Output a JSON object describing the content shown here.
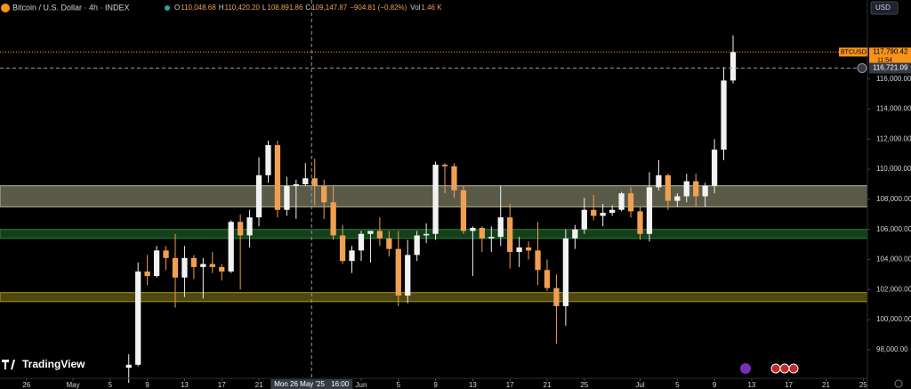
{
  "chart_data": {
    "type": "candlestick",
    "header": {
      "symbol": "Bitcoin / U.S. Dollar · 4h · INDEX",
      "ohlc": [
        {
          "key": "O",
          "text": "110,048.68"
        },
        {
          "key": "H",
          "text": "110,420.20"
        },
        {
          "key": "L",
          "text": "108,891.86"
        },
        {
          "key": "C",
          "text": "109,147.87"
        }
      ],
      "change": "−904.81 (−0.82%)",
      "volume_key": "Vol",
      "volume": "1.46 K"
    },
    "currency": "USD",
    "logo": "TradingView",
    "ticker_tag": "BTCUSD",
    "up_color": "#f2f2f2",
    "down_color": "#f0a050",
    "candles": {
      "x": [
        6,
        7,
        8,
        9,
        10,
        11,
        12,
        13,
        14,
        15,
        16,
        17,
        18,
        19,
        20,
        21,
        22,
        23,
        24,
        25,
        26,
        27,
        28,
        29,
        30,
        31,
        32,
        33,
        34,
        35,
        36,
        37,
        38,
        39,
        40,
        41,
        42,
        43,
        44,
        45,
        46,
        47,
        48,
        49,
        50,
        51,
        52,
        53,
        54,
        55,
        56,
        57,
        58,
        59,
        60,
        61,
        62,
        63,
        64,
        65,
        66,
        67,
        68,
        69,
        70,
        71
      ],
      "open": [
        96800,
        97000,
        103200,
        102900,
        104600,
        104100,
        102800,
        104100,
        103500,
        103700,
        103500,
        103200,
        106500,
        105600,
        106800,
        109600,
        111600,
        107300,
        108900,
        109000,
        109400,
        108900,
        107800,
        105600,
        103900,
        104600,
        105700,
        105900,
        105400,
        104700,
        101600,
        104300,
        105600,
        105700,
        110300,
        110200,
        108600,
        105900,
        106100,
        105400,
        105500,
        106800,
        104500,
        104800,
        104600,
        103300,
        102100,
        100900,
        105400,
        106000,
        107300,
        106900,
        107100,
        107300,
        108400,
        107200,
        105700,
        108800,
        109600,
        107900,
        108200,
        109200,
        108200,
        108900,
        111300,
        115900
      ],
      "high": [
        97700,
        103800,
        104300,
        104900,
        104900,
        105700,
        104900,
        104300,
        104100,
        104500,
        103700,
        106600,
        107000,
        107300,
        110800,
        111900,
        111900,
        109500,
        109300,
        110400,
        110700,
        109300,
        108900,
        106300,
        104900,
        105900,
        105900,
        106800,
        105900,
        105900,
        105300,
        105900,
        106400,
        110500,
        110400,
        110400,
        108900,
        106200,
        106200,
        106200,
        108900,
        107700,
        105500,
        105200,
        106500,
        104000,
        103000,
        106000,
        106300,
        108100,
        108300,
        107700,
        107600,
        108500,
        108800,
        107500,
        109800,
        110600,
        109700,
        108400,
        109700,
        109700,
        109100,
        112000,
        116800,
        118900
      ],
      "low": [
        95800,
        96900,
        102300,
        102800,
        103300,
        100800,
        101500,
        102700,
        101400,
        103100,
        102600,
        103100,
        102000,
        104800,
        106200,
        109100,
        106800,
        106900,
        106700,
        108900,
        107600,
        106700,
        105300,
        103700,
        103100,
        103900,
        103800,
        104900,
        104200,
        100900,
        101100,
        103900,
        105100,
        105300,
        108400,
        108100,
        105700,
        102900,
        104500,
        104500,
        104900,
        103400,
        103500,
        104000,
        102300,
        101900,
        98400,
        99600,
        104700,
        105700,
        106600,
        106200,
        106900,
        107200,
        106800,
        105300,
        105200,
        108600,
        107300,
        107500,
        107800,
        107500,
        107500,
        108400,
        110600,
        115700
      ],
      "close": [
        97000,
        103200,
        102900,
        104600,
        104100,
        102800,
        104100,
        103500,
        103700,
        103500,
        103200,
        106500,
        105600,
        106800,
        109600,
        111600,
        107300,
        108900,
        109000,
        109400,
        108900,
        107800,
        105600,
        103900,
        104600,
        105700,
        105900,
        105400,
        104700,
        101600,
        104300,
        105600,
        105700,
        110300,
        110200,
        108600,
        105900,
        106100,
        105400,
        105500,
        106800,
        104500,
        104800,
        104600,
        103300,
        102100,
        100900,
        105400,
        106000,
        107300,
        106900,
        107100,
        107300,
        108400,
        107200,
        105700,
        108800,
        109600,
        107900,
        108200,
        109200,
        108200,
        108900,
        111300,
        115900,
        117790.42
      ]
    },
    "zones": [
      {
        "low": 107500,
        "high": 108900,
        "color": "#c8c8a0"
      },
      {
        "low": 105400,
        "high": 106000,
        "color": "#2e8b3a"
      },
      {
        "low": 101200,
        "high": 101800,
        "color": "#b0a020"
      }
    ],
    "last_price": {
      "value": 117790.42,
      "label": "117,790.42"
    },
    "countdown": "11:54",
    "crosshair": {
      "x": 25.667,
      "x_label": "Mon 26 May '25",
      "time_label": "16:00",
      "price": {
        "value": 116721.09,
        "label": "116,721.09"
      }
    },
    "xlim": [
      -7.85,
      85.45
    ],
    "xticks": [
      {
        "value": -5,
        "label": "26"
      },
      {
        "value": 0,
        "label": "May"
      },
      {
        "value": 4,
        "label": "5"
      },
      {
        "value": 8,
        "label": "9"
      },
      {
        "value": 12,
        "label": "13"
      },
      {
        "value": 16,
        "label": "17"
      },
      {
        "value": 20,
        "label": "21"
      },
      {
        "value": 31,
        "label": "Jun"
      },
      {
        "value": 35,
        "label": "5"
      },
      {
        "value": 39,
        "label": "9"
      },
      {
        "value": 43,
        "label": "13"
      },
      {
        "value": 47,
        "label": "17"
      },
      {
        "value": 51,
        "label": "21"
      },
      {
        "value": 55,
        "label": "25"
      },
      {
        "value": 61,
        "label": "Jul"
      },
      {
        "value": 65,
        "label": "5"
      },
      {
        "value": 69,
        "label": "9"
      },
      {
        "value": 73,
        "label": "13"
      },
      {
        "value": 77,
        "label": "17"
      },
      {
        "value": 81,
        "label": "21"
      },
      {
        "value": 85,
        "label": "25"
      }
    ],
    "ylim": [
      96100,
      121250
    ],
    "yticks": [
      {
        "value": 98000,
        "label": "98,000.00"
      },
      {
        "value": 100000,
        "label": "100,000.00"
      },
      {
        "value": 102000,
        "label": "102,000.00"
      },
      {
        "value": 104000,
        "label": "104,000.00"
      },
      {
        "value": 106000,
        "label": "106,000.00"
      },
      {
        "value": 108000,
        "label": "108,000.00"
      },
      {
        "value": 110000,
        "label": "110,000.00"
      },
      {
        "value": 112000,
        "label": "112,000.00"
      },
      {
        "value": 114000,
        "label": "114,000.00"
      },
      {
        "value": 116000,
        "label": "116,000.00"
      }
    ],
    "grid": false
  }
}
